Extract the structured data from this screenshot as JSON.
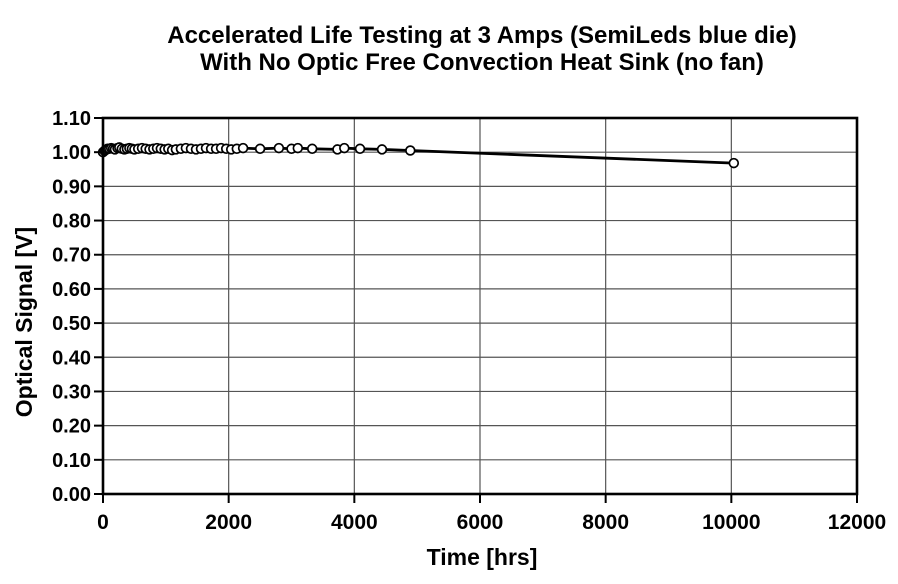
{
  "chart_data": {
    "type": "line",
    "title_lines": [
      "Accelerated Life Testing at 3 Amps (SemiLeds blue die)",
      "With No Optic Free Convection Heat Sink (no fan)"
    ],
    "xlabel": "Time [hrs]",
    "ylabel": "Optical Signal [V]",
    "xlim": [
      0,
      12000
    ],
    "ylim": [
      0.0,
      1.1
    ],
    "x_tick_labels": [
      "0",
      "2000",
      "4000",
      "6000",
      "8000",
      "10000",
      "12000"
    ],
    "y_tick_labels": [
      "0.00",
      "0.10",
      "0.20",
      "0.30",
      "0.40",
      "0.50",
      "0.60",
      "0.70",
      "0.80",
      "0.90",
      "1.00",
      "1.10"
    ],
    "grid": true,
    "legend": null,
    "series": [
      {
        "name": "Optical Signal",
        "marker": "open-circle",
        "line_color": "#000000",
        "marker_fill": "#ffffff",
        "points": [
          [
            0,
            1.0
          ],
          [
            24,
            1.004
          ],
          [
            48,
            1.007
          ],
          [
            72,
            1.01
          ],
          [
            100,
            1.01
          ],
          [
            130,
            1.012
          ],
          [
            160,
            1.01
          ],
          [
            190,
            1.008
          ],
          [
            230,
            1.012
          ],
          [
            260,
            1.014
          ],
          [
            300,
            1.01
          ],
          [
            340,
            1.008
          ],
          [
            380,
            1.01
          ],
          [
            420,
            1.012
          ],
          [
            460,
            1.01
          ],
          [
            500,
            1.008
          ],
          [
            560,
            1.01
          ],
          [
            620,
            1.012
          ],
          [
            680,
            1.01
          ],
          [
            740,
            1.008
          ],
          [
            800,
            1.01
          ],
          [
            860,
            1.012
          ],
          [
            920,
            1.01
          ],
          [
            980,
            1.008
          ],
          [
            1040,
            1.01
          ],
          [
            1100,
            1.006
          ],
          [
            1160,
            1.008
          ],
          [
            1240,
            1.01
          ],
          [
            1320,
            1.012
          ],
          [
            1400,
            1.01
          ],
          [
            1480,
            1.008
          ],
          [
            1560,
            1.01
          ],
          [
            1640,
            1.012
          ],
          [
            1720,
            1.01
          ],
          [
            1800,
            1.01
          ],
          [
            1880,
            1.012
          ],
          [
            1960,
            1.01
          ],
          [
            2040,
            1.008
          ],
          [
            2130,
            1.01
          ],
          [
            2230,
            1.012
          ],
          [
            2500,
            1.01
          ],
          [
            2800,
            1.012
          ],
          [
            3000,
            1.01
          ],
          [
            3100,
            1.012
          ],
          [
            3330,
            1.01
          ],
          [
            3730,
            1.008
          ],
          [
            3840,
            1.012
          ],
          [
            4090,
            1.01
          ],
          [
            4440,
            1.008
          ],
          [
            4890,
            1.005
          ],
          [
            10040,
            0.968
          ]
        ]
      }
    ]
  },
  "colors": {
    "background": "#ffffff",
    "text": "#000000",
    "grid": "#555555",
    "axis_frame": "#000000",
    "marker_fill": "#ffffff",
    "line": "#000000"
  }
}
